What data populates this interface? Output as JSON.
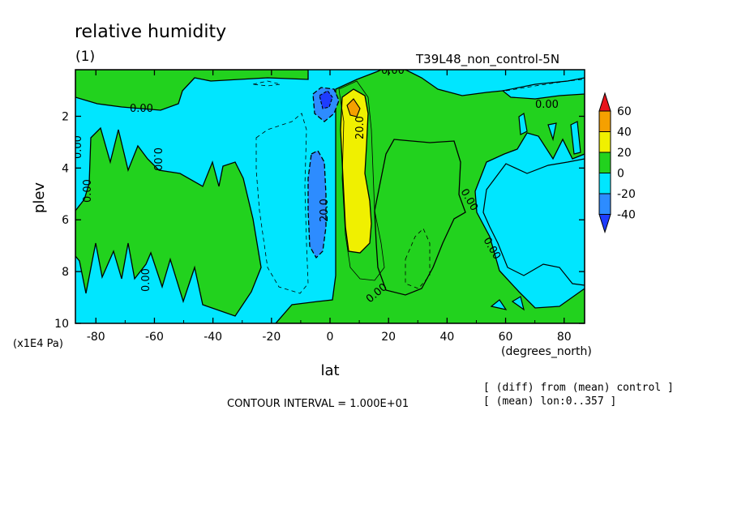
{
  "chart_data": {
    "type": "contour",
    "title": "relative humidity",
    "subtitle": "(1)",
    "experiment": "T39L48_non_control-5N",
    "xlabel": "lat",
    "xunits": "(degrees_north)",
    "ylabel": "plev",
    "yunits": "(x1E4 Pa)",
    "xlim": [
      -87,
      87
    ],
    "ylim": [
      0.2,
      10
    ],
    "yaxis_inverted": true,
    "x_ticks": [
      -80,
      -60,
      -40,
      -20,
      0,
      20,
      40,
      60,
      80
    ],
    "y_ticks": [
      2,
      4,
      6,
      8,
      10
    ],
    "contour_interval_text": "CONTOUR INTERVAL = 1.000E+01",
    "notes": [
      "[ (diff) from (mean) control ]",
      "[ (mean) lon:0..357 ]"
    ],
    "contour_labels": [
      "0.00",
      "0.00",
      "0.00",
      "0.00",
      "0.00",
      "0.00",
      "0.00",
      "0.00",
      "0.00",
      "0.00",
      "20.0",
      "20.0"
    ],
    "legend": {
      "levels": [
        "60",
        "40",
        "20",
        "0",
        "-20",
        "-40"
      ],
      "colors": [
        "#e8141c",
        "#f5a000",
        "#f0f000",
        "#22d21e",
        "#00e6ff",
        "#2d8cff",
        "#1e3cff"
      ]
    },
    "regions": [
      {
        "value_range": "0 to 20",
        "color": "#22d21e",
        "description": "positive anomaly fields"
      },
      {
        "value_range": "-20 to 0",
        "color": "#00e6ff",
        "description": "background negative anomaly"
      },
      {
        "value_range": "20 to 40",
        "color": "#f0f000",
        "description": "maximum near 8N, 1.5-7.5"
      },
      {
        "value_range": "-40 to -20",
        "color": "#2d8cff",
        "description": "minimum near -5, 1-7.5"
      }
    ]
  }
}
